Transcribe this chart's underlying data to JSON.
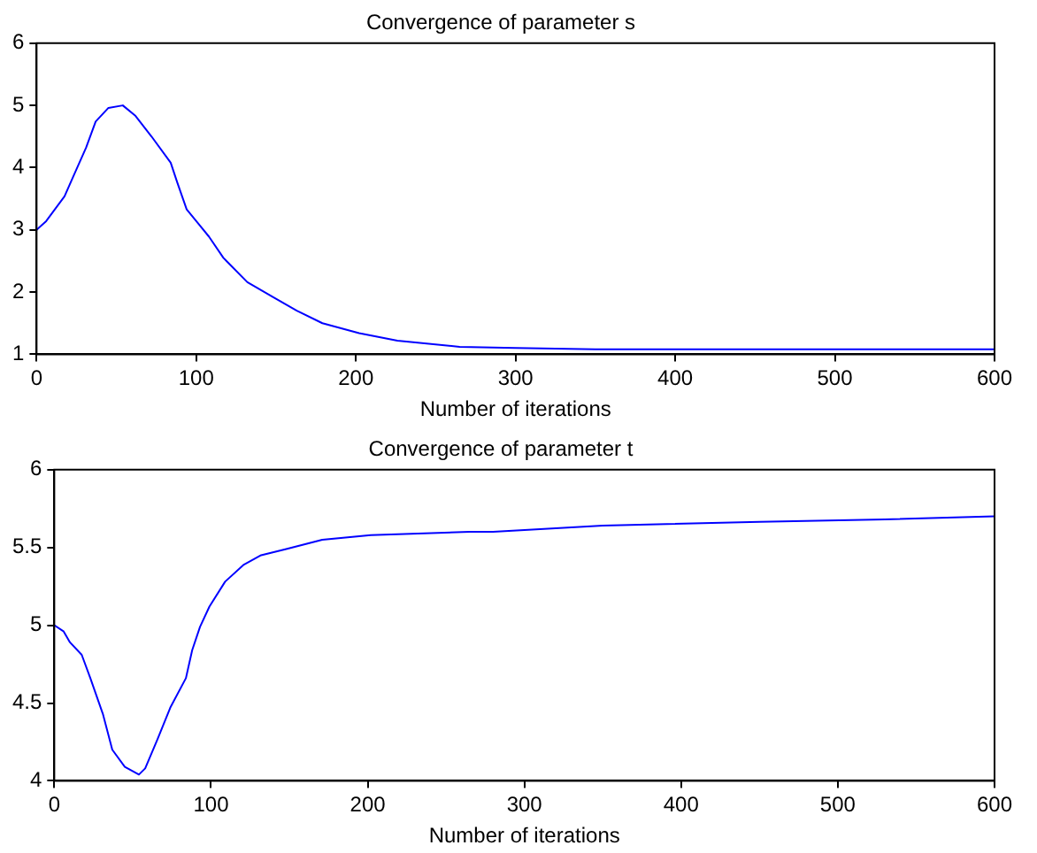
{
  "chart_data": [
    {
      "type": "line",
      "title": "Convergence of parameter s",
      "xlabel": "Number of iterations",
      "x": [
        0,
        6,
        17.5,
        23,
        31,
        37,
        45,
        54,
        62,
        72,
        84,
        88,
        94,
        108,
        117,
        132,
        148,
        163,
        179,
        202,
        226,
        265,
        300,
        350,
        400,
        450,
        500,
        550,
        600
      ],
      "series": [
        {
          "color": "#0000ff",
          "values": [
            3.0,
            3.14,
            3.54,
            3.86,
            4.32,
            4.74,
            4.96,
            5.0,
            4.83,
            4.5,
            4.08,
            3.77,
            3.33,
            2.89,
            2.55,
            2.16,
            1.92,
            1.7,
            1.5,
            1.34,
            1.22,
            1.12,
            1.1,
            1.08,
            1.08,
            1.08,
            1.08,
            1.08,
            1.08
          ]
        }
      ],
      "xlim": [
        0,
        600
      ],
      "xticks": [
        0,
        100,
        200,
        300,
        400,
        500,
        600
      ],
      "ylim": [
        1,
        6
      ],
      "yticks": [
        1,
        2,
        3,
        4,
        5,
        6
      ],
      "grid": false
    },
    {
      "type": "line",
      "title": "Convergence of parameter t",
      "xlabel": "Number of iterations",
      "x": [
        0,
        6,
        10,
        17.5,
        23,
        31,
        37,
        45,
        54,
        58,
        66,
        74,
        84,
        88,
        93,
        99,
        109,
        121,
        132,
        148,
        171,
        202,
        265,
        280,
        350,
        450,
        530,
        600
      ],
      "series": [
        {
          "color": "#0000ff",
          "values": [
            5.0,
            4.96,
            4.89,
            4.81,
            4.66,
            4.43,
            4.2,
            4.09,
            4.04,
            4.08,
            4.27,
            4.47,
            4.66,
            4.84,
            4.99,
            5.12,
            5.28,
            5.39,
            5.45,
            5.49,
            5.55,
            5.58,
            5.6,
            5.6,
            5.64,
            5.665,
            5.68,
            5.7
          ]
        }
      ],
      "xlim": [
        0,
        600
      ],
      "xticks": [
        0,
        100,
        200,
        300,
        400,
        500,
        600
      ],
      "ylim": [
        4,
        6
      ],
      "yticks": [
        4,
        4.5,
        5,
        5.5,
        6
      ],
      "grid": false
    }
  ]
}
